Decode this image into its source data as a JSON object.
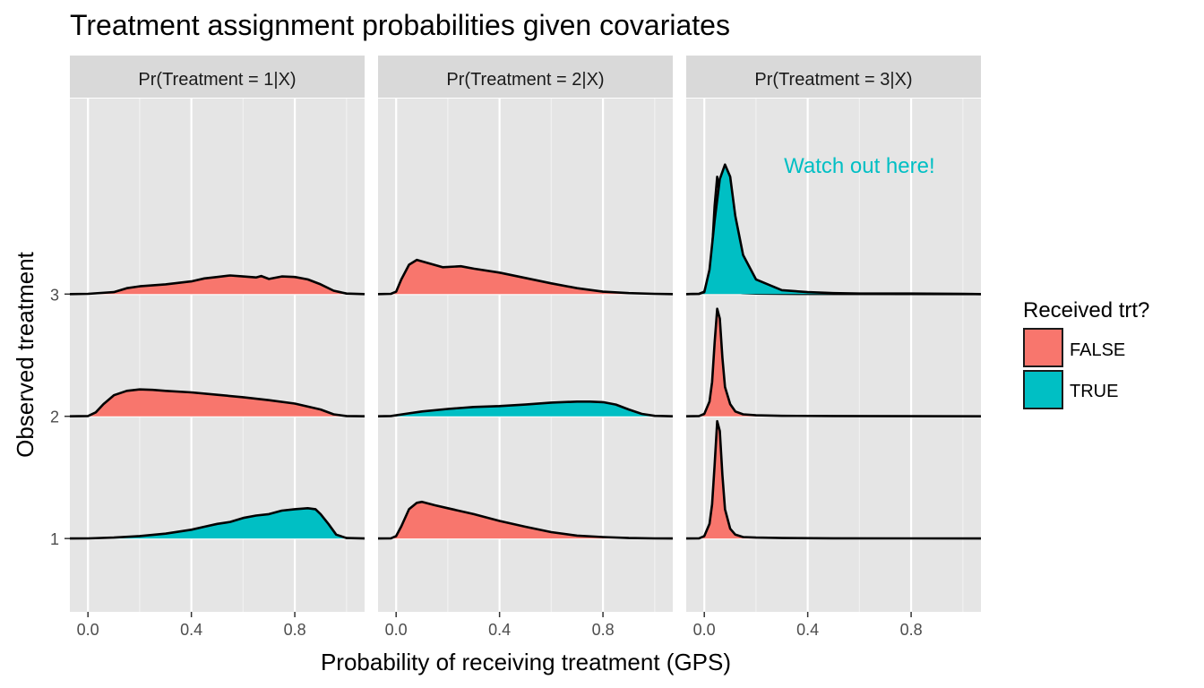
{
  "chart_data": {
    "type": "ridgeline-density",
    "title": "Treatment assignment probabilities given covariates",
    "xlabel": "Probability of receiving treatment (GPS)",
    "ylabel": "Observed treatment",
    "xlim": [
      -0.07,
      1.07
    ],
    "x_ticks": [
      "0.0",
      "0.4",
      "0.8"
    ],
    "x_tick_values": [
      0.0,
      0.4,
      0.8
    ],
    "x_minor_values": [
      0.2,
      0.6,
      1.0
    ],
    "y_ticks": [
      "1",
      "2",
      "3"
    ],
    "y_tick_values": [
      1,
      2,
      3
    ],
    "ylim": [
      0.4,
      4.6
    ],
    "grid": true,
    "panel_background": "#e5e5e5",
    "strip_background": "#d9d9d9",
    "legend": {
      "title": "Received trt?",
      "placement": "right",
      "entries": [
        {
          "label": "FALSE",
          "color": "#F8766D"
        },
        {
          "label": "TRUE",
          "color": "#00BFC4"
        }
      ]
    },
    "annotation": {
      "text": "Watch out here!",
      "color": "#00BFC4",
      "panel": 2,
      "x": 0.6,
      "y": 3.99
    },
    "panels": [
      {
        "strip": "Pr(Treatment = 1|X)",
        "ridges": [
          {
            "observed": 1,
            "received": true,
            "color": "#00BFC4",
            "x": [
              -0.07,
              0.0,
              0.1,
              0.2,
              0.3,
              0.4,
              0.45,
              0.5,
              0.55,
              0.6,
              0.65,
              0.7,
              0.75,
              0.8,
              0.85,
              0.88,
              0.9,
              0.93,
              0.96,
              1.0,
              1.07
            ],
            "density": [
              0,
              0.002,
              0.02,
              0.05,
              0.1,
              0.18,
              0.24,
              0.3,
              0.34,
              0.42,
              0.47,
              0.5,
              0.57,
              0.6,
              0.62,
              0.6,
              0.5,
              0.3,
              0.08,
              0.01,
              0
            ]
          },
          {
            "observed": 2,
            "received": false,
            "color": "#F8766D",
            "x": [
              -0.07,
              0.0,
              0.03,
              0.06,
              0.1,
              0.15,
              0.2,
              0.25,
              0.3,
              0.4,
              0.5,
              0.6,
              0.7,
              0.8,
              0.9,
              0.95,
              1.0,
              1.07
            ],
            "density": [
              0,
              0.005,
              0.08,
              0.25,
              0.43,
              0.52,
              0.55,
              0.54,
              0.52,
              0.49,
              0.44,
              0.39,
              0.33,
              0.26,
              0.14,
              0.04,
              0.005,
              0
            ]
          },
          {
            "observed": 3,
            "received": false,
            "color": "#F8766D",
            "x": [
              -0.07,
              0.0,
              0.1,
              0.15,
              0.2,
              0.3,
              0.4,
              0.45,
              0.5,
              0.55,
              0.6,
              0.65,
              0.67,
              0.7,
              0.75,
              0.8,
              0.85,
              0.9,
              0.95,
              1.0,
              1.07
            ],
            "density": [
              0,
              0.005,
              0.04,
              0.12,
              0.16,
              0.2,
              0.26,
              0.32,
              0.35,
              0.38,
              0.36,
              0.34,
              0.37,
              0.31,
              0.36,
              0.35,
              0.3,
              0.2,
              0.07,
              0.01,
              0
            ]
          }
        ]
      },
      {
        "strip": "Pr(Treatment = 2|X)",
        "ridges": [
          {
            "observed": 1,
            "received": false,
            "color": "#F8766D",
            "x": [
              -0.07,
              -0.02,
              0.0,
              0.02,
              0.05,
              0.08,
              0.1,
              0.15,
              0.2,
              0.3,
              0.4,
              0.5,
              0.6,
              0.7,
              0.8,
              0.9,
              1.0,
              1.07
            ],
            "density": [
              0,
              0.005,
              0.05,
              0.25,
              0.6,
              0.73,
              0.75,
              0.68,
              0.62,
              0.5,
              0.36,
              0.24,
              0.13,
              0.06,
              0.03,
              0.01,
              0.003,
              0
            ]
          },
          {
            "observed": 2,
            "received": true,
            "color": "#00BFC4",
            "x": [
              -0.07,
              -0.02,
              0.0,
              0.05,
              0.1,
              0.2,
              0.3,
              0.4,
              0.5,
              0.6,
              0.7,
              0.75,
              0.8,
              0.85,
              0.9,
              0.95,
              1.0,
              1.07
            ],
            "density": [
              0,
              0.005,
              0.02,
              0.06,
              0.1,
              0.15,
              0.19,
              0.21,
              0.24,
              0.28,
              0.3,
              0.3,
              0.29,
              0.24,
              0.14,
              0.05,
              0.01,
              0
            ]
          },
          {
            "observed": 3,
            "received": false,
            "color": "#F8766D",
            "x": [
              -0.07,
              -0.02,
              0.0,
              0.02,
              0.05,
              0.08,
              0.12,
              0.18,
              0.25,
              0.3,
              0.4,
              0.5,
              0.6,
              0.7,
              0.8,
              0.9,
              1.0,
              1.07
            ],
            "density": [
              0,
              0.005,
              0.05,
              0.3,
              0.6,
              0.7,
              0.64,
              0.55,
              0.57,
              0.52,
              0.44,
              0.33,
              0.22,
              0.12,
              0.05,
              0.02,
              0.005,
              0
            ]
          }
        ]
      },
      {
        "strip": "Pr(Treatment = 3|X)",
        "ridges": [
          {
            "observed": 1,
            "received": false,
            "color": "#F8766D",
            "x": [
              -0.07,
              -0.02,
              0.0,
              0.02,
              0.03,
              0.04,
              0.05,
              0.06,
              0.07,
              0.08,
              0.1,
              0.12,
              0.15,
              0.2,
              0.3,
              0.5,
              1.07
            ],
            "density": [
              0,
              0.005,
              0.05,
              0.3,
              0.7,
              1.5,
              2.4,
              2.2,
              1.3,
              0.6,
              0.2,
              0.08,
              0.03,
              0.02,
              0.01,
              0.005,
              0
            ]
          },
          {
            "observed": 2,
            "received": false,
            "color": "#F8766D",
            "x": [
              -0.07,
              -0.02,
              0.0,
              0.02,
              0.03,
              0.04,
              0.05,
              0.06,
              0.07,
              0.08,
              0.1,
              0.12,
              0.15,
              0.2,
              0.3,
              0.5,
              1.07
            ],
            "density": [
              0,
              0.005,
              0.05,
              0.3,
              0.7,
              1.5,
              2.2,
              2.0,
              1.2,
              0.6,
              0.25,
              0.1,
              0.04,
              0.02,
              0.01,
              0.005,
              0
            ]
          },
          {
            "observed": 3,
            "received": false,
            "color": "#F8766D",
            "x": [
              -0.07,
              -0.02,
              0.0,
              0.02,
              0.03,
              0.04,
              0.05,
              0.06,
              0.07,
              0.08,
              0.1,
              0.12,
              0.15,
              0.2,
              0.3,
              1.07
            ],
            "density": [
              0,
              0.005,
              0.05,
              0.4,
              0.9,
              1.8,
              2.4,
              2.0,
              1.2,
              0.5,
              0.15,
              0.05,
              0.02,
              0.01,
              0.005,
              0
            ]
          },
          {
            "observed": 3,
            "received": true,
            "color": "#00BFC4",
            "x": [
              -0.07,
              -0.02,
              0.0,
              0.02,
              0.04,
              0.06,
              0.08,
              0.1,
              0.12,
              0.15,
              0.2,
              0.3,
              0.4,
              0.5,
              0.6,
              0.8,
              1.0,
              1.07
            ],
            "density": [
              0,
              0.005,
              0.04,
              0.5,
              1.5,
              2.35,
              2.65,
              2.4,
              1.6,
              0.8,
              0.3,
              0.08,
              0.04,
              0.02,
              0.01,
              0.01,
              0.005,
              0
            ]
          }
        ]
      }
    ]
  }
}
